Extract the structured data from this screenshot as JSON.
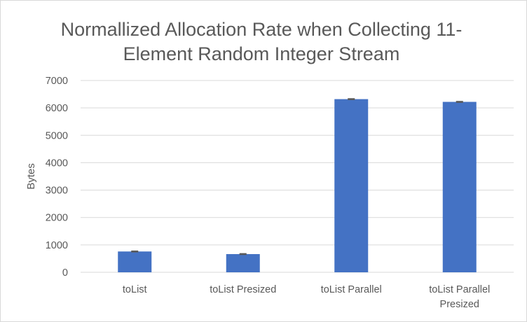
{
  "chart_data": {
    "type": "bar",
    "title_lines": [
      "Normallized Allocation Rate when Collecting 11-",
      "Element Random Integer Stream"
    ],
    "xlabel": "",
    "ylabel": "Bytes",
    "categories": [
      [
        "toList"
      ],
      [
        "toList Presized"
      ],
      [
        "toList Parallel"
      ],
      [
        "toList Parallel",
        "Presized"
      ]
    ],
    "values": [
      760,
      665,
      6320,
      6220
    ],
    "error": [
      15,
      15,
      15,
      15
    ],
    "ylim": [
      0,
      7000
    ],
    "yticks": [
      0,
      1000,
      2000,
      3000,
      4000,
      5000,
      6000,
      7000
    ],
    "bar_color": "#4472C4",
    "error_bar_color": "#595959",
    "grid": true,
    "grid_color": "#d9d9d9",
    "legend": "none"
  }
}
